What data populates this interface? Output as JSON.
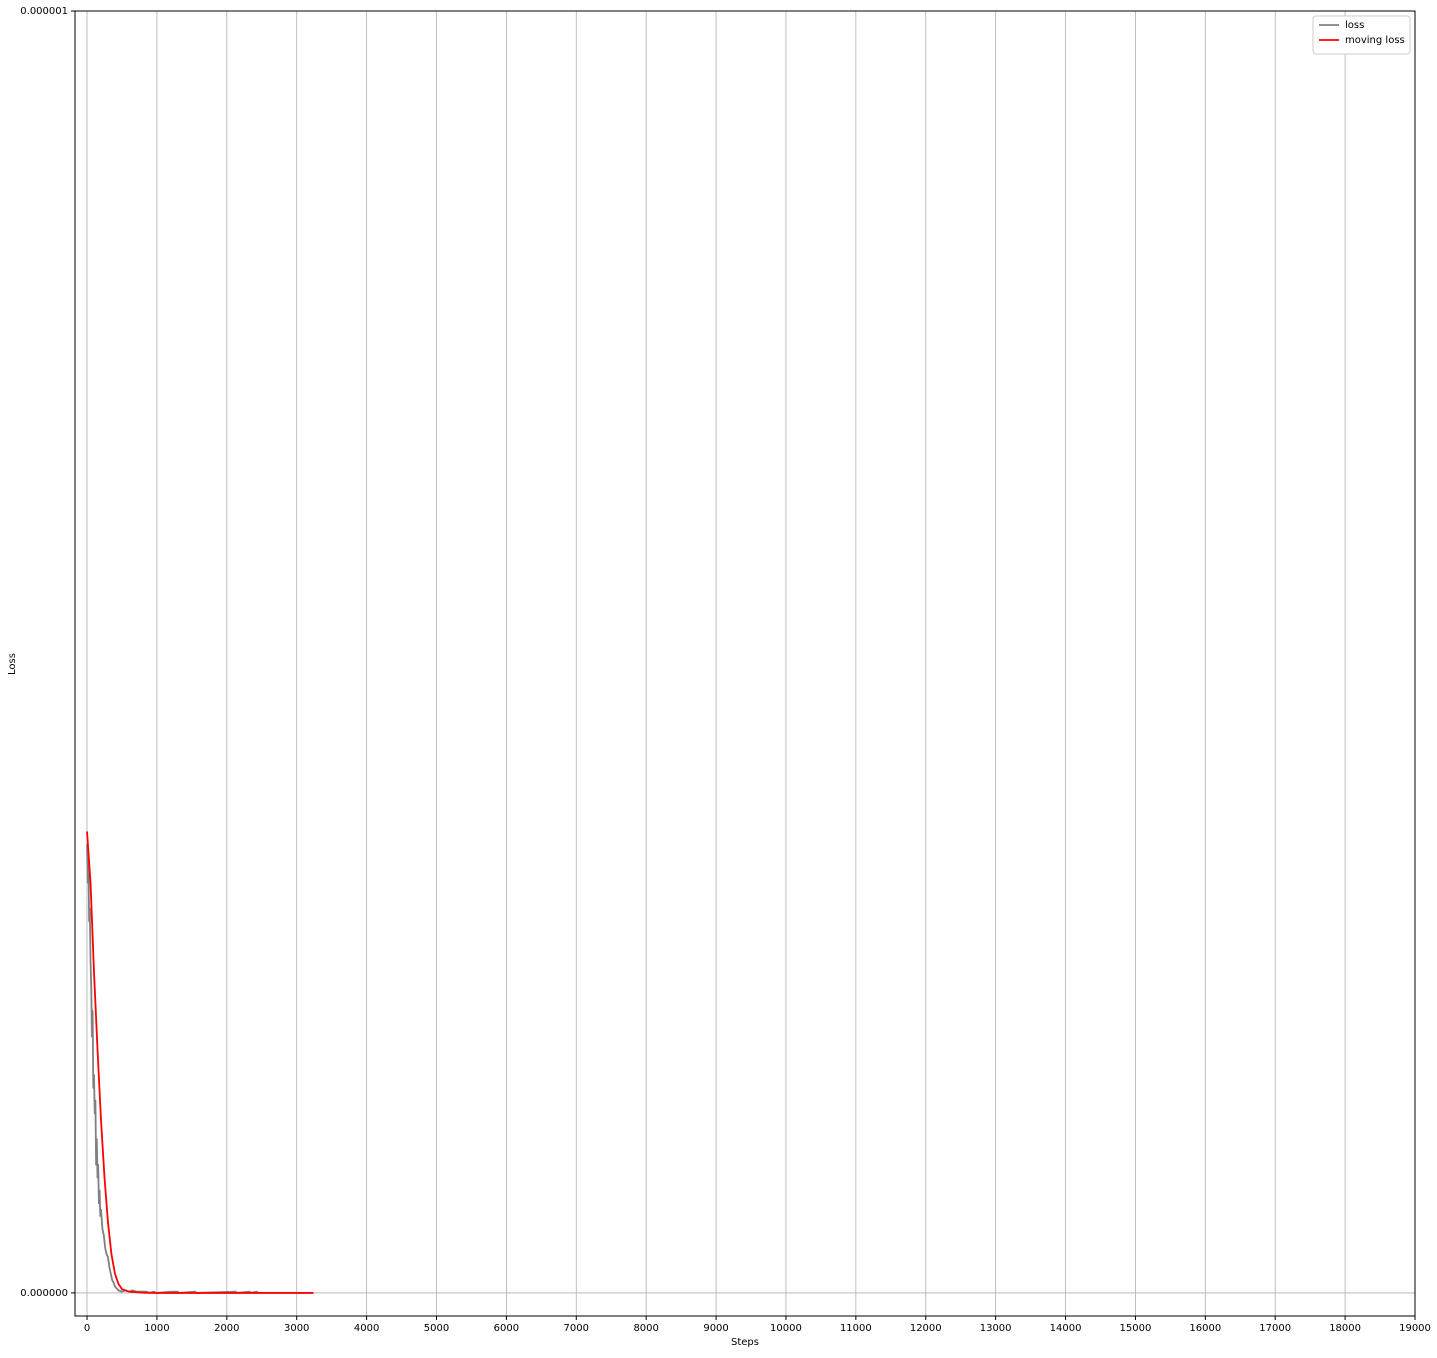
{
  "chart_data": {
    "type": "line",
    "xlabel": "Steps",
    "ylabel": "Loss",
    "xlim": [
      -172,
      19000
    ],
    "ylim": [
      -1.8e-08,
      1e-06
    ],
    "xticks": [
      0,
      1000,
      2000,
      3000,
      4000,
      5000,
      6000,
      7000,
      8000,
      9000,
      10000,
      11000,
      12000,
      13000,
      14000,
      15000,
      16000,
      17000,
      18000,
      19000
    ],
    "yticks": [
      {
        "value": 0,
        "label": "0.000000"
      },
      {
        "value": 1e-06,
        "label": "0.000001"
      }
    ],
    "grid": true,
    "legend": "upper right",
    "series": [
      {
        "name": "loss",
        "color": "#808080",
        "x": [
          0,
          10,
          20,
          30,
          40,
          50,
          60,
          70,
          80,
          90,
          100,
          110,
          120,
          130,
          140,
          150,
          160,
          170,
          180,
          190,
          200,
          220,
          240,
          260,
          280,
          300,
          320,
          340,
          360,
          380,
          400,
          450,
          500,
          550,
          600,
          650,
          700,
          750,
          800,
          850,
          900,
          950,
          1000,
          1200,
          1210,
          1220,
          1300,
          1310,
          1550,
          1560,
          2130,
          2140,
          2330,
          2340,
          2420,
          2430,
          2450
        ],
        "values": [
          3.5e-07,
          3.2e-07,
          3.4e-07,
          2.9e-07,
          3e-07,
          2.6e-07,
          2.4e-07,
          2e-07,
          2.2e-07,
          1.6e-07,
          1.7e-07,
          1.4e-07,
          1.5e-07,
          1e-07,
          1.2e-07,
          9e-08,
          1e-07,
          7e-08,
          8e-08,
          6e-08,
          6.5e-08,
          5e-08,
          4.5e-08,
          3.5e-08,
          3e-08,
          2.8e-08,
          2e-08,
          1.5e-08,
          1e-08,
          8e-09,
          5e-09,
          2e-09,
          1e-09,
          2e-09,
          1e-09,
          2e-09,
          1e-09,
          1e-09,
          1e-09,
          1e-09,
          0,
          1e-09,
          0,
          1e-09,
          0,
          1e-09,
          1e-09,
          0,
          1e-09,
          0,
          1e-09,
          0,
          1e-09,
          0,
          1e-09,
          1e-09,
          0
        ]
      },
      {
        "name": "moving loss",
        "color": "#ff0000",
        "x": [
          0,
          50,
          100,
          150,
          200,
          250,
          300,
          350,
          400,
          450,
          500,
          600,
          800,
          1000,
          3240
        ],
        "values": [
          3.6e-07,
          3.2e-07,
          2.5e-07,
          1.9e-07,
          1.35e-07,
          9e-08,
          5.5e-08,
          3e-08,
          1.5e-08,
          7e-09,
          3e-09,
          1e-09,
          2e-10,
          0,
          0
        ]
      }
    ]
  }
}
